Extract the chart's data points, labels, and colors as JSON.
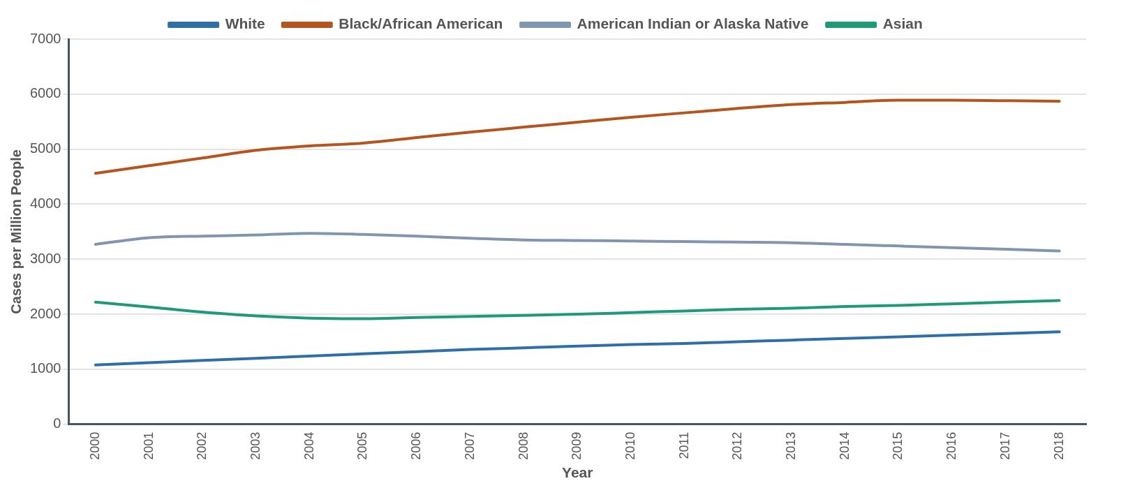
{
  "chart_data": {
    "type": "line",
    "xlabel": "Year",
    "ylabel": "Cases per Million People",
    "categories": [
      "2000",
      "2001",
      "2002",
      "2003",
      "2004",
      "2005",
      "2006",
      "2007",
      "2008",
      "2009",
      "2010",
      "2011",
      "2012",
      "2013",
      "2014",
      "2015",
      "2016",
      "2017",
      "2018"
    ],
    "series": [
      {
        "name": "White",
        "color": "#2f6fa8",
        "values": [
          1080,
          1120,
          1160,
          1200,
          1240,
          1280,
          1320,
          1360,
          1390,
          1420,
          1450,
          1470,
          1500,
          1530,
          1560,
          1590,
          1620,
          1650,
          1680
        ]
      },
      {
        "name": "Black/African American",
        "color": "#b5541c",
        "values": [
          4560,
          4700,
          4840,
          4980,
          5060,
          5110,
          5210,
          5310,
          5400,
          5490,
          5580,
          5660,
          5740,
          5810,
          5850,
          5890,
          5890,
          5880,
          5870
        ]
      },
      {
        "name": "American Indian or Alaska Native",
        "color": "#8096b0",
        "values": [
          3270,
          3390,
          3420,
          3440,
          3470,
          3450,
          3420,
          3380,
          3350,
          3340,
          3330,
          3320,
          3310,
          3300,
          3270,
          3240,
          3210,
          3180,
          3150
        ]
      },
      {
        "name": "Asian",
        "color": "#1e9a78",
        "values": [
          2220,
          2130,
          2040,
          1970,
          1930,
          1920,
          1940,
          1960,
          1980,
          2000,
          2030,
          2060,
          2090,
          2110,
          2140,
          2160,
          2190,
          2220,
          2250
        ]
      }
    ],
    "ylim": [
      0,
      7000
    ],
    "yticks": [
      0,
      1000,
      2000,
      3000,
      4000,
      5000,
      6000,
      7000
    ],
    "grid": "y",
    "legend": "top",
    "marker": "none",
    "line_style": "solid"
  }
}
